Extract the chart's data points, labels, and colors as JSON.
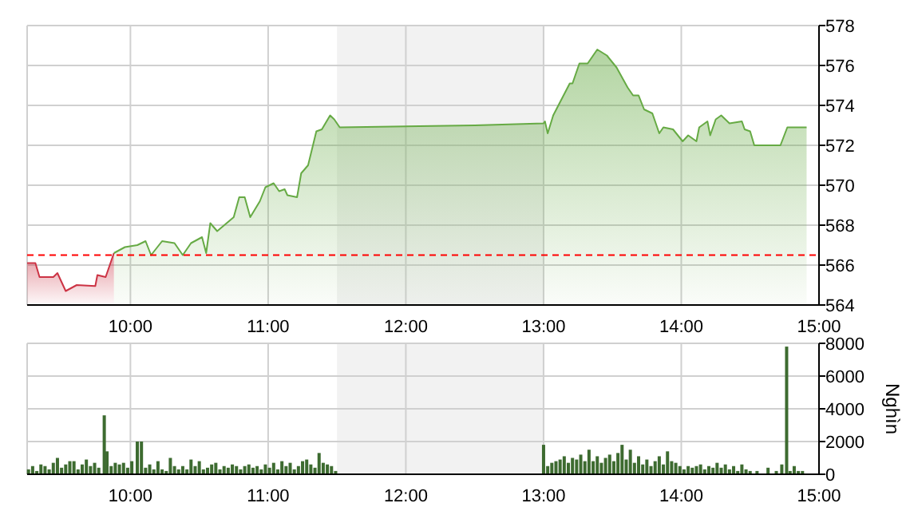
{
  "chart_data": [
    {
      "type": "area",
      "xlim": [
        9.25,
        15
      ],
      "xticks": [
        {
          "value": 10,
          "label": "10:00"
        },
        {
          "value": 11,
          "label": "11:00"
        },
        {
          "value": 12,
          "label": "12:00"
        },
        {
          "value": 13,
          "label": "13:00"
        },
        {
          "value": 14,
          "label": "14:00"
        },
        {
          "value": 15,
          "label": "15:00"
        }
      ],
      "ylim": [
        564,
        578
      ],
      "yticks": [
        564,
        566,
        568,
        570,
        572,
        574,
        576,
        578
      ],
      "grid": true,
      "bands": [
        {
          "axis": "x",
          "from": 11.5,
          "to": 13,
          "color": "#f2f2f2"
        }
      ],
      "ref_lines": [
        {
          "axis": "y",
          "value": 566.5,
          "color": "#ff0000",
          "line_style": "dashed"
        }
      ],
      "series": [
        {
          "color": "#cc3344",
          "x": [
            9.25,
            9.31,
            9.34,
            9.44,
            9.47,
            9.53,
            9.61,
            9.745,
            9.76,
            9.82,
            9.88
          ],
          "values": [
            566.1,
            566.1,
            565.4,
            565.4,
            565.6,
            564.7,
            565.0,
            564.95,
            565.5,
            565.4,
            566.6
          ]
        },
        {
          "color": "#66aa44",
          "x": [
            9.88,
            9.96,
            10.05,
            10.11,
            10.15,
            10.23,
            10.32,
            10.38,
            10.44,
            10.52,
            10.55,
            10.58,
            10.63,
            10.75,
            10.79,
            10.83,
            10.87,
            10.94,
            10.98,
            11.04,
            11.08,
            11.12,
            11.14,
            11.21,
            11.24,
            11.29,
            11.35,
            11.39,
            11.45,
            11.48,
            11.52,
            12.5,
            13.0,
            13.01,
            13.03,
            13.07,
            13.13,
            13.19,
            13.21,
            13.26,
            13.32,
            13.39,
            13.46,
            13.53,
            13.61,
            13.65,
            13.69,
            13.73,
            13.79,
            13.84,
            13.87,
            13.94,
            14.01,
            14.05,
            14.11,
            14.13,
            14.19,
            14.21,
            14.25,
            14.29,
            14.35,
            14.44,
            14.46,
            14.5,
            14.53,
            14.72,
            14.77,
            14.91
          ],
          "values": [
            566.6,
            566.9,
            567.0,
            567.2,
            566.5,
            567.2,
            567.1,
            566.5,
            567.1,
            567.4,
            566.6,
            568.1,
            567.7,
            568.4,
            569.4,
            569.4,
            568.4,
            569.2,
            569.9,
            570.1,
            569.7,
            569.8,
            569.5,
            569.4,
            570.6,
            571.0,
            572.7,
            572.8,
            573.5,
            573.3,
            572.9,
            573.0,
            573.1,
            573.2,
            572.6,
            573.5,
            574.3,
            575.1,
            575.1,
            576.1,
            576.1,
            576.8,
            576.5,
            575.9,
            574.9,
            574.5,
            574.5,
            573.8,
            573.6,
            572.6,
            572.9,
            572.8,
            572.2,
            572.5,
            572.2,
            572.9,
            573.2,
            572.5,
            573.3,
            573.5,
            573.1,
            573.2,
            572.8,
            572.7,
            572.0,
            572.0,
            572.9,
            572.9
          ]
        }
      ]
    },
    {
      "type": "bar",
      "ylabel": "Nghìn",
      "color": "#3d6b30",
      "xlim": [
        9.25,
        15
      ],
      "xticks": [
        {
          "value": 10,
          "label": "10:00"
        },
        {
          "value": 11,
          "label": "11:00"
        },
        {
          "value": 12,
          "label": "12:00"
        },
        {
          "value": 13,
          "label": "13:00"
        },
        {
          "value": 14,
          "label": "14:00"
        },
        {
          "value": 15,
          "label": "15:00"
        }
      ],
      "ylim": [
        0,
        8000
      ],
      "yticks": [
        0,
        2000,
        4000,
        6000,
        8000
      ],
      "grid": true,
      "bands": [
        {
          "axis": "x",
          "from": 11.5,
          "to": 13,
          "color": "#f2f2f2"
        }
      ],
      "x": [
        9.26,
        9.29,
        9.32,
        9.35,
        9.38,
        9.41,
        9.44,
        9.47,
        9.5,
        9.53,
        9.56,
        9.59,
        9.62,
        9.65,
        9.68,
        9.71,
        9.74,
        9.77,
        9.81,
        9.83,
        9.86,
        9.89,
        9.92,
        9.95,
        9.98,
        10.01,
        10.05,
        10.08,
        10.11,
        10.14,
        10.17,
        10.2,
        10.23,
        10.26,
        10.29,
        10.32,
        10.35,
        10.38,
        10.41,
        10.44,
        10.47,
        10.5,
        10.53,
        10.56,
        10.59,
        10.62,
        10.65,
        10.68,
        10.71,
        10.74,
        10.77,
        10.8,
        10.83,
        10.86,
        10.89,
        10.92,
        10.95,
        10.98,
        11.01,
        11.04,
        11.07,
        11.1,
        11.13,
        11.16,
        11.19,
        11.22,
        11.25,
        11.28,
        11.31,
        11.34,
        11.37,
        11.4,
        11.43,
        11.46,
        11.49,
        13.0,
        13.03,
        13.06,
        13.09,
        13.12,
        13.15,
        13.18,
        13.21,
        13.24,
        13.27,
        13.3,
        13.33,
        13.36,
        13.39,
        13.42,
        13.45,
        13.48,
        13.51,
        13.54,
        13.57,
        13.6,
        13.63,
        13.66,
        13.69,
        13.72,
        13.75,
        13.78,
        13.81,
        13.84,
        13.87,
        13.9,
        13.93,
        13.96,
        13.99,
        14.02,
        14.05,
        14.08,
        14.11,
        14.14,
        14.17,
        14.2,
        14.23,
        14.26,
        14.29,
        14.32,
        14.35,
        14.38,
        14.41,
        14.44,
        14.47,
        14.5,
        14.55,
        14.63,
        14.69,
        14.73,
        14.765,
        14.79,
        14.82,
        14.85,
        14.88
      ],
      "values": [
        300,
        500,
        200,
        600,
        500,
        300,
        700,
        1000,
        400,
        600,
        800,
        800,
        300,
        600,
        900,
        500,
        700,
        400,
        3600,
        1400,
        500,
        700,
        600,
        700,
        400,
        800,
        2000,
        2000,
        400,
        600,
        300,
        800,
        300,
        200,
        1000,
        500,
        300,
        500,
        300,
        900,
        500,
        800,
        300,
        400,
        600,
        700,
        300,
        500,
        400,
        600,
        500,
        300,
        500,
        600,
        400,
        500,
        300,
        600,
        400,
        700,
        300,
        800,
        500,
        700,
        300,
        500,
        800,
        900,
        600,
        400,
        1300,
        700,
        600,
        500,
        200,
        1800,
        500,
        700,
        800,
        900,
        1100,
        700,
        1000,
        900,
        1200,
        800,
        1500,
        800,
        1100,
        700,
        1000,
        1200,
        800,
        1300,
        1800,
        900,
        1500,
        700,
        1100,
        600,
        900,
        500,
        800,
        1100,
        600,
        1400,
        800,
        700,
        500,
        300,
        500,
        400,
        500,
        600,
        300,
        500,
        400,
        700,
        400,
        600,
        300,
        500,
        200,
        600,
        300,
        200,
        200,
        400,
        200,
        600,
        7800,
        200,
        500,
        200,
        200
      ]
    }
  ]
}
